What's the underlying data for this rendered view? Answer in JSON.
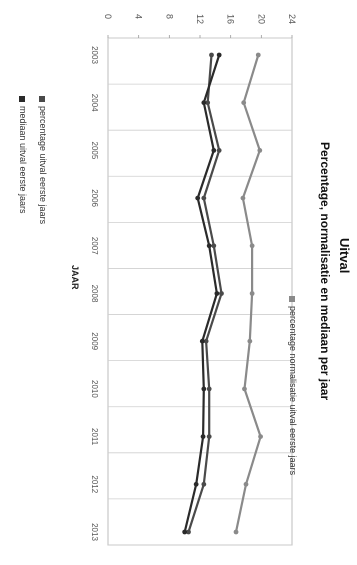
{
  "chart_data": {
    "type": "line",
    "title": "Uitval",
    "subtitle": "Percentage, normalisatie en mediaan per jaar",
    "xlabel": "JAAR",
    "ylabel": "",
    "categories": [
      "2003",
      "2004",
      "2005",
      "2006",
      "2007",
      "2008",
      "2009",
      "2010",
      "2011",
      "2012",
      "2013"
    ],
    "ylim": [
      0,
      24
    ],
    "yticks": [
      0,
      4,
      8,
      12,
      16,
      20,
      24
    ],
    "grid": true,
    "series": [
      {
        "name": "percentage uitval eerste jaars",
        "values": [
          13.5,
          13.0,
          14.5,
          12.5,
          13.8,
          14.8,
          12.8,
          13.2,
          13.2,
          12.5,
          10.5
        ],
        "color": "#4a4a4a"
      },
      {
        "name": "percentage normalisatie uitval eerste jaars",
        "values": [
          19.6,
          17.7,
          19.8,
          17.6,
          18.8,
          18.8,
          18.5,
          17.8,
          19.9,
          18.0,
          16.7
        ],
        "color": "#8a8a8a"
      },
      {
        "name": "mediaan uitval eerste jaars",
        "values": [
          14.5,
          12.5,
          13.8,
          11.7,
          13.2,
          14.2,
          12.3,
          12.5,
          12.4,
          11.5,
          10.0
        ],
        "color": "#2a2a2a"
      }
    ],
    "legend": [
      "percentage uitval eerste jaars",
      "mediaan uitval eerste jaars",
      "percentage normalisatie uitval eerste jaars"
    ]
  }
}
